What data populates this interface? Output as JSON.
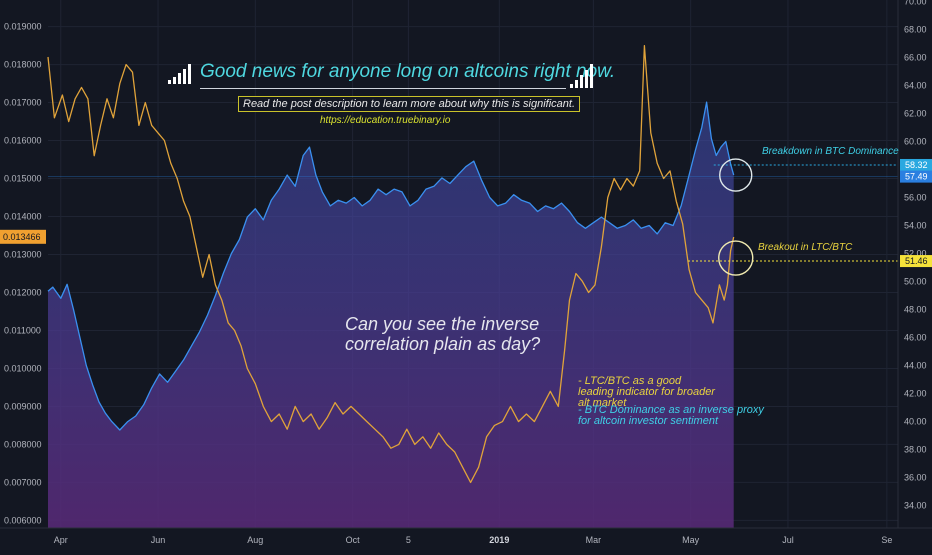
{
  "chart_data": {
    "type": "line",
    "headline": "Good news for anyone long on altcoins right now.",
    "description": "Read the post description to learn more about why this is significant.",
    "url": "https://education.truebinary.io",
    "question": "Can you see the inverse correlation plain as day?",
    "notes": [
      "- LTC/BTC as a good leading indicator for broader alt market",
      "- BTC Dominance as an inverse proxy for altcoin investor sentiment"
    ],
    "annotations": {
      "btc": "Breakdown in BTC Dominance",
      "ltc": "Breakout in LTC/BTC"
    },
    "x_range": [
      "2018-03-24",
      "2019-09-08"
    ],
    "x_ticks": [
      {
        "date": "2018-04-01",
        "label": "Apr",
        "bold": false
      },
      {
        "date": "2018-06-01",
        "label": "Jun",
        "bold": false
      },
      {
        "date": "2018-08-01",
        "label": "Aug",
        "bold": false
      },
      {
        "date": "2018-10-01",
        "label": "Oct",
        "bold": false
      },
      {
        "date": "2018-11-05",
        "label": "5",
        "bold": false
      },
      {
        "date": "2019-01-01",
        "label": "2019",
        "bold": true
      },
      {
        "date": "2019-03-01",
        "label": "Mar",
        "bold": false
      },
      {
        "date": "2019-05-01",
        "label": "May",
        "bold": false
      },
      {
        "date": "2019-07-01",
        "label": "Jul",
        "bold": false
      },
      {
        "date": "2019-09-01",
        "label": "Se",
        "bold": false
      }
    ],
    "left_axis": {
      "range": [
        0.0058,
        0.0197
      ],
      "ticks": [
        "0.019000",
        "0.018000",
        "0.017000",
        "0.016000",
        "0.015000",
        "0.014000",
        "0.013000",
        "0.012000",
        "0.011000",
        "0.010000",
        "0.009000",
        "0.008000",
        "0.007000",
        "0.006000"
      ],
      "marker": "0.013466",
      "marker_color": "#f0a030"
    },
    "right_axis": {
      "range": [
        32.4,
        70.1
      ],
      "ticks": [
        "70.00",
        "68.00",
        "66.00",
        "64.00",
        "62.00",
        "60.00",
        "58.00",
        "56.00",
        "54.00",
        "52.00",
        "50.00",
        "48.00",
        "46.00",
        "44.00",
        "42.00",
        "40.00",
        "38.00",
        "36.00",
        "34.00"
      ],
      "markers": [
        {
          "label": "58.32",
          "color": "#2aa8e0"
        },
        {
          "label": "57.49",
          "color": "#2a7fe0"
        },
        {
          "label": "51.46",
          "color": "#f5e23a"
        }
      ]
    },
    "series": [
      {
        "axis": "right",
        "color": "#3a90f0",
        "area": true,
        "points": [
          [
            "2018-03-24",
            49.3
          ],
          [
            "2018-03-27",
            49.6
          ],
          [
            "2018-04-01",
            48.8
          ],
          [
            "2018-04-05",
            49.8
          ],
          [
            "2018-04-09",
            48.0
          ],
          [
            "2018-04-13",
            46.0
          ],
          [
            "2018-04-17",
            44.0
          ],
          [
            "2018-04-21",
            42.6
          ],
          [
            "2018-04-25",
            41.4
          ],
          [
            "2018-04-29",
            40.6
          ],
          [
            "2018-05-03",
            40.0
          ],
          [
            "2018-05-08",
            39.4
          ],
          [
            "2018-05-13",
            40.0
          ],
          [
            "2018-05-18",
            40.4
          ],
          [
            "2018-05-23",
            41.2
          ],
          [
            "2018-05-28",
            42.4
          ],
          [
            "2018-06-02",
            43.4
          ],
          [
            "2018-06-07",
            42.8
          ],
          [
            "2018-06-12",
            43.6
          ],
          [
            "2018-06-17",
            44.4
          ],
          [
            "2018-06-22",
            45.4
          ],
          [
            "2018-06-27",
            46.4
          ],
          [
            "2018-07-02",
            47.6
          ],
          [
            "2018-07-07",
            49.0
          ],
          [
            "2018-07-12",
            50.6
          ],
          [
            "2018-07-17",
            52.0
          ],
          [
            "2018-07-22",
            53.0
          ],
          [
            "2018-07-27",
            54.6
          ],
          [
            "2018-08-01",
            55.2
          ],
          [
            "2018-08-06",
            54.4
          ],
          [
            "2018-08-11",
            55.8
          ],
          [
            "2018-08-16",
            56.6
          ],
          [
            "2018-08-21",
            57.6
          ],
          [
            "2018-08-26",
            56.8
          ],
          [
            "2018-08-31",
            59.0
          ],
          [
            "2018-09-04",
            59.6
          ],
          [
            "2018-09-08",
            57.6
          ],
          [
            "2018-09-12",
            56.4
          ],
          [
            "2018-09-17",
            55.4
          ],
          [
            "2018-09-22",
            55.8
          ],
          [
            "2018-09-27",
            55.6
          ],
          [
            "2018-10-02",
            56.0
          ],
          [
            "2018-10-07",
            55.4
          ],
          [
            "2018-10-12",
            55.8
          ],
          [
            "2018-10-17",
            56.6
          ],
          [
            "2018-10-22",
            56.2
          ],
          [
            "2018-10-27",
            56.6
          ],
          [
            "2018-11-01",
            56.4
          ],
          [
            "2018-11-06",
            55.4
          ],
          [
            "2018-11-11",
            55.8
          ],
          [
            "2018-11-16",
            56.6
          ],
          [
            "2018-11-21",
            56.8
          ],
          [
            "2018-11-26",
            57.4
          ],
          [
            "2018-12-01",
            57.0
          ],
          [
            "2018-12-06",
            57.6
          ],
          [
            "2018-12-11",
            58.2
          ],
          [
            "2018-12-16",
            58.6
          ],
          [
            "2018-12-21",
            57.2
          ],
          [
            "2018-12-26",
            56.0
          ],
          [
            "2018-12-31",
            55.4
          ],
          [
            "2019-01-05",
            55.6
          ],
          [
            "2019-01-10",
            56.2
          ],
          [
            "2019-01-15",
            55.8
          ],
          [
            "2019-01-20",
            55.6
          ],
          [
            "2019-01-25",
            55.0
          ],
          [
            "2019-01-30",
            55.4
          ],
          [
            "2019-02-04",
            55.2
          ],
          [
            "2019-02-09",
            55.6
          ],
          [
            "2019-02-14",
            55.0
          ],
          [
            "2019-02-19",
            54.2
          ],
          [
            "2019-02-24",
            53.8
          ],
          [
            "2019-03-01",
            54.2
          ],
          [
            "2019-03-06",
            54.6
          ],
          [
            "2019-03-11",
            54.2
          ],
          [
            "2019-03-16",
            53.8
          ],
          [
            "2019-03-21",
            54.0
          ],
          [
            "2019-03-26",
            54.4
          ],
          [
            "2019-03-31",
            53.8
          ],
          [
            "2019-04-05",
            54.0
          ],
          [
            "2019-04-10",
            53.4
          ],
          [
            "2019-04-15",
            54.2
          ],
          [
            "2019-04-20",
            54.0
          ],
          [
            "2019-04-25",
            55.4
          ],
          [
            "2019-04-30",
            57.6
          ],
          [
            "2019-05-04",
            59.4
          ],
          [
            "2019-05-08",
            61.0
          ],
          [
            "2019-05-11",
            62.8
          ],
          [
            "2019-05-14",
            60.2
          ],
          [
            "2019-05-17",
            59.0
          ],
          [
            "2019-05-20",
            59.6
          ],
          [
            "2019-05-23",
            60.0
          ],
          [
            "2019-05-26",
            58.4
          ],
          [
            "2019-05-28",
            57.6
          ]
        ]
      },
      {
        "axis": "left",
        "color": "#e0a33a",
        "area": false,
        "points": [
          [
            "2018-03-24",
            0.0182
          ],
          [
            "2018-03-28",
            0.0166
          ],
          [
            "2018-04-02",
            0.0172
          ],
          [
            "2018-04-06",
            0.0165
          ],
          [
            "2018-04-10",
            0.0171
          ],
          [
            "2018-04-14",
            0.0174
          ],
          [
            "2018-04-18",
            0.0171
          ],
          [
            "2018-04-22",
            0.0156
          ],
          [
            "2018-04-26",
            0.0164
          ],
          [
            "2018-04-30",
            0.0171
          ],
          [
            "2018-05-04",
            0.0166
          ],
          [
            "2018-05-08",
            0.0175
          ],
          [
            "2018-05-12",
            0.018
          ],
          [
            "2018-05-16",
            0.0178
          ],
          [
            "2018-05-20",
            0.0164
          ],
          [
            "2018-05-24",
            0.017
          ],
          [
            "2018-05-28",
            0.0164
          ],
          [
            "2018-06-01",
            0.0162
          ],
          [
            "2018-06-05",
            0.016
          ],
          [
            "2018-06-09",
            0.0154
          ],
          [
            "2018-06-13",
            0.015
          ],
          [
            "2018-06-17",
            0.0144
          ],
          [
            "2018-06-21",
            0.014
          ],
          [
            "2018-06-25",
            0.0132
          ],
          [
            "2018-06-29",
            0.0124
          ],
          [
            "2018-07-03",
            0.013
          ],
          [
            "2018-07-07",
            0.0122
          ],
          [
            "2018-07-11",
            0.0118
          ],
          [
            "2018-07-15",
            0.0112
          ],
          [
            "2018-07-19",
            0.011
          ],
          [
            "2018-07-23",
            0.0106
          ],
          [
            "2018-07-27",
            0.01
          ],
          [
            "2018-08-01",
            0.0096
          ],
          [
            "2018-08-06",
            0.009
          ],
          [
            "2018-08-11",
            0.0086
          ],
          [
            "2018-08-16",
            0.0088
          ],
          [
            "2018-08-21",
            0.0084
          ],
          [
            "2018-08-26",
            0.009
          ],
          [
            "2018-08-31",
            0.0086
          ],
          [
            "2018-09-05",
            0.0088
          ],
          [
            "2018-09-10",
            0.0084
          ],
          [
            "2018-09-15",
            0.0087
          ],
          [
            "2018-09-20",
            0.0091
          ],
          [
            "2018-09-25",
            0.0088
          ],
          [
            "2018-09-30",
            0.009
          ],
          [
            "2018-10-05",
            0.0088
          ],
          [
            "2018-10-10",
            0.0086
          ],
          [
            "2018-10-15",
            0.0084
          ],
          [
            "2018-10-20",
            0.0082
          ],
          [
            "2018-10-25",
            0.0079
          ],
          [
            "2018-10-30",
            0.008
          ],
          [
            "2018-11-04",
            0.0084
          ],
          [
            "2018-11-09",
            0.008
          ],
          [
            "2018-11-14",
            0.0082
          ],
          [
            "2018-11-19",
            0.0079
          ],
          [
            "2018-11-24",
            0.0083
          ],
          [
            "2018-11-29",
            0.008
          ],
          [
            "2018-12-04",
            0.0078
          ],
          [
            "2018-12-09",
            0.0074
          ],
          [
            "2018-12-14",
            0.007
          ],
          [
            "2018-12-19",
            0.0074
          ],
          [
            "2018-12-24",
            0.0082
          ],
          [
            "2018-12-29",
            0.0085
          ],
          [
            "2019-01-03",
            0.0086
          ],
          [
            "2019-01-08",
            0.009
          ],
          [
            "2019-01-13",
            0.0086
          ],
          [
            "2019-01-18",
            0.0088
          ],
          [
            "2019-01-23",
            0.0086
          ],
          [
            "2019-01-28",
            0.009
          ],
          [
            "2019-02-02",
            0.0094
          ],
          [
            "2019-02-07",
            0.009
          ],
          [
            "2019-02-11",
            0.0105
          ],
          [
            "2019-02-14",
            0.0118
          ],
          [
            "2019-02-18",
            0.0125
          ],
          [
            "2019-02-22",
            0.0123
          ],
          [
            "2019-02-26",
            0.012
          ],
          [
            "2019-03-02",
            0.0122
          ],
          [
            "2019-03-06",
            0.0132
          ],
          [
            "2019-03-10",
            0.0145
          ],
          [
            "2019-03-14",
            0.015
          ],
          [
            "2019-03-18",
            0.0147
          ],
          [
            "2019-03-22",
            0.015
          ],
          [
            "2019-03-26",
            0.0148
          ],
          [
            "2019-03-30",
            0.0152
          ],
          [
            "2019-04-02",
            0.0185
          ],
          [
            "2019-04-06",
            0.0162
          ],
          [
            "2019-04-10",
            0.0154
          ],
          [
            "2019-04-14",
            0.015
          ],
          [
            "2019-04-18",
            0.0152
          ],
          [
            "2019-04-22",
            0.0144
          ],
          [
            "2019-04-26",
            0.0138
          ],
          [
            "2019-04-30",
            0.0126
          ],
          [
            "2019-05-04",
            0.012
          ],
          [
            "2019-05-08",
            0.0118
          ],
          [
            "2019-05-12",
            0.0116
          ],
          [
            "2019-05-15",
            0.0112
          ],
          [
            "2019-05-19",
            0.0122
          ],
          [
            "2019-05-22",
            0.0118
          ],
          [
            "2019-05-24",
            0.0122
          ],
          [
            "2019-05-26",
            0.0131
          ],
          [
            "2019-05-28",
            0.01346
          ]
        ]
      }
    ]
  }
}
